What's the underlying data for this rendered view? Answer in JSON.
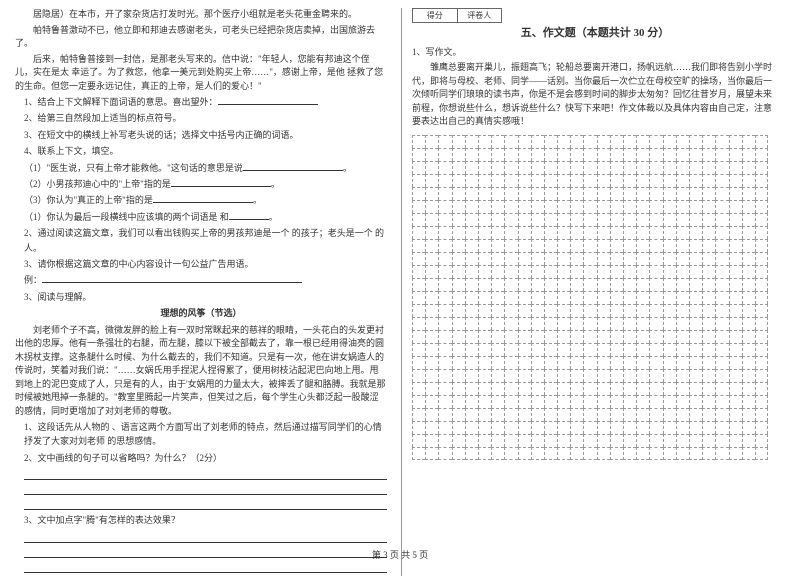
{
  "leftColumn": {
    "para1": "居隐居）在本市，开了家杂货店打发时光。那个医疗小组就是老头花重金聘来的。",
    "para2": "帕特鲁普激动不已，他立即和邦迪去感谢老头，可老头已经把杂货店卖掉，出国旅游去了。",
    "para3": "后来，帕特鲁普接到一封信，是那老头写来的。信中说：\"年轻人，您能有邦迪这个侄儿，实在是太   幸运了。为了救您，他拿一美元到处购买上帝……\"，感谢上帝，是他   拯救了您的生命。但您一定要永远记住，真正的上帝，是人们的爱心！\"",
    "q1": "1、结合上下文解释下面词语的意思。喜出望外：",
    "q2": "2、给第三自然段加上适当的标点符号。",
    "q3": "3、在短文中的横线上补写老头说的话；选择文中括号内正确的词语。",
    "q4": "4、联系上下文，填空。",
    "q4_1": "（1）\"医生说，只有上帝才能救他。\"这句话的意思是说",
    "q4_2": "（2）小男孩邦迪心中的\"上帝\"指的是",
    "q4_3": "（3）你认为\"真正的上帝\"指的是",
    "q4_4": "（1）你认为最后一段横线中应该填的两个词语是           和",
    "q5": "2、通过阅读这篇文章，我们可以看出钱购买上帝的男孩邦迪是一个              的孩子；老头是一个                      的人。",
    "q6": "3、请你根据这篇文章的中心内容设计一句公益广告用语。",
    "q6_ex": "例：",
    "q7": "3、阅读与理解。",
    "story_title": "理想的风筝（节选）",
    "story_p1": "刘老师个子不高，微微发胖的脸上有一双时常眯起来的慈祥的眼睛，一头花白的头发更衬出他的忠厚。他有一条强壮的右腿，而左腿，膝以下被全部截去了，靠一根已经用得油亮的圆木拐杖支撑。这条腿什么时候、为什么截去的，我们不知道。只是有一次，他在讲女娲造人的传说时，笑着对我们说：\"……女娲氏用手捏泥人捏得累了，便用树枝沾起泥巴向地上甩。甩到地上的泥巴变成了人，只是有的人，由于'女娲甩的力量太大，被摔丢了腿和胳膊。我就是那时候被她甩掉一条腿的。\"教室里腾起一片笑声，但笑过之后，每个学生心头都泛起一股酸涩的感情，同时更增加了对刘老师的尊敬。",
    "story_q1": "1、这段话先从人物的          、语言这两个方面写出了刘老师的特点，然后通过描写同学们的心情抒发了大家对刘老师           的思想感情。",
    "story_q2": "2、文中画线的句子可以省略吗？为什么？（2分）",
    "story_q3": "3、文中加点字\"腾\"有怎样的表达效果？"
  },
  "rightColumn": {
    "score_label1": "得分",
    "score_label2": "评卷人",
    "section_title": "五、作文题（本题共计 30 分）",
    "q_num": "1、写作文。",
    "prompt": "雏鹰总要离开巢儿，振翅高飞；轮船总要离开港口，扬帆远航……我们即将告别小学时代，即将与母校、老师、同学——话别。当你最后一次伫立在母校空旷的操场，当你最后一次倾听同学们琅琅的读书声，你是不是会感到时间的脚步太匆匆？回忆往昔岁月，展望未来前程，你想说些什么，想诉说些什么？快写下来吧！作文体裁以及具体内容由自己定，注意要表达出自己的真情实感哦！"
  },
  "footer": "第 3 页 共 5 页",
  "grid": {
    "rows": 25,
    "cols": 27
  }
}
